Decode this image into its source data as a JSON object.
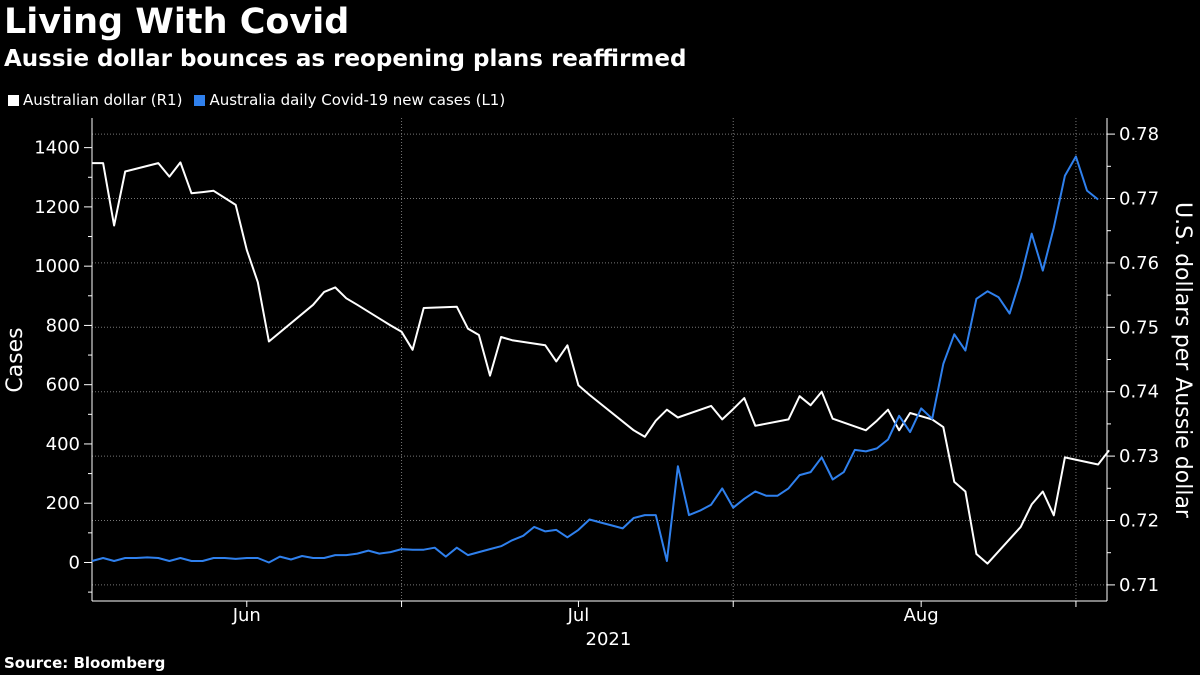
{
  "header": {
    "title": "Living With Covid",
    "subtitle": "Aussie dollar bounces as reopening plans reaffirmed"
  },
  "legend": [
    {
      "label": "Australian dollar (R1)",
      "color": "#ffffff"
    },
    {
      "label": "Australia daily Covid-19 new cases (L1)",
      "color": "#2f80ed"
    }
  ],
  "footer": {
    "source": "Source: Bloomberg"
  },
  "chart_data": {
    "type": "line",
    "title": "Living With Covid",
    "subtitle": "Aussie dollar bounces as reopening plans reaffirmed",
    "x_ticks": [
      {
        "date": "2021-06-01",
        "label": "Jun"
      },
      {
        "date": "2021-07-01",
        "label": "Jul"
      },
      {
        "date": "2021-08-01",
        "label": "Aug"
      }
    ],
    "x_minor_grid": [
      "2021-06-15",
      "2021-07-15",
      "2021-08-15"
    ],
    "x_year_label": "2021",
    "xlim": [
      "2021-05-18",
      "2021-08-16"
    ],
    "left_axis": {
      "label": "Cases",
      "ylim": [
        -130,
        1500
      ],
      "ticks": [
        0,
        200,
        400,
        600,
        800,
        1000,
        1200,
        1400
      ]
    },
    "right_axis": {
      "label": "U.S. dollars per Aussie dollar",
      "ylim": [
        0.7075,
        0.7825
      ],
      "ticks": [
        "0.71",
        "0.72",
        "0.73",
        "0.74",
        "0.75",
        "0.76",
        "0.77",
        "0.78"
      ]
    },
    "grid": true,
    "series": [
      {
        "name": "Australian dollar (R1)",
        "axis": "right",
        "color": "#ffffff",
        "points": [
          [
            "2021-05-18",
            0.7755
          ],
          [
            "2021-05-19",
            0.7755
          ],
          [
            "2021-05-20",
            0.7658
          ],
          [
            "2021-05-21",
            0.7742
          ],
          [
            "2021-05-24",
            0.7755
          ],
          [
            "2021-05-25",
            0.7734
          ],
          [
            "2021-05-26",
            0.7756
          ],
          [
            "2021-05-27",
            0.7708
          ],
          [
            "2021-05-28",
            0.771
          ],
          [
            "2021-05-29",
            0.7712
          ],
          [
            "2021-05-31",
            0.769
          ],
          [
            "2021-06-01",
            0.762
          ],
          [
            "2021-06-02",
            0.757
          ],
          [
            "2021-06-03",
            0.7478
          ],
          [
            "2021-06-07",
            0.7535
          ],
          [
            "2021-06-08",
            0.7555
          ],
          [
            "2021-06-09",
            0.7562
          ],
          [
            "2021-06-10",
            0.7545
          ],
          [
            "2021-06-11",
            0.7535
          ],
          [
            "2021-06-14",
            0.7503
          ],
          [
            "2021-06-15",
            0.7493
          ],
          [
            "2021-06-16",
            0.7465
          ],
          [
            "2021-06-17",
            0.753
          ],
          [
            "2021-06-20",
            0.7532
          ],
          [
            "2021-06-21",
            0.7498
          ],
          [
            "2021-06-22",
            0.7488
          ],
          [
            "2021-06-23",
            0.7425
          ],
          [
            "2021-06-24",
            0.7485
          ],
          [
            "2021-06-25",
            0.748
          ],
          [
            "2021-06-28",
            0.7472
          ],
          [
            "2021-06-29",
            0.7447
          ],
          [
            "2021-06-30",
            0.7472
          ],
          [
            "2021-07-01",
            0.741
          ],
          [
            "2021-07-02",
            0.7395
          ],
          [
            "2021-07-06",
            0.734
          ],
          [
            "2021-07-07",
            0.733
          ],
          [
            "2021-07-08",
            0.7355
          ],
          [
            "2021-07-09",
            0.7372
          ],
          [
            "2021-07-10",
            0.736
          ],
          [
            "2021-07-13",
            0.7378
          ],
          [
            "2021-07-14",
            0.7357
          ],
          [
            "2021-07-15",
            0.7373
          ],
          [
            "2021-07-16",
            0.739
          ],
          [
            "2021-07-17",
            0.7347
          ],
          [
            "2021-07-20",
            0.7357
          ],
          [
            "2021-07-21",
            0.7393
          ],
          [
            "2021-07-22",
            0.7379
          ],
          [
            "2021-07-23",
            0.74
          ],
          [
            "2021-07-24",
            0.7358
          ],
          [
            "2021-07-27",
            0.734
          ],
          [
            "2021-07-28",
            0.7355
          ],
          [
            "2021-07-29",
            0.7372
          ],
          [
            "2021-07-30",
            0.734
          ],
          [
            "2021-07-31",
            0.7367
          ],
          [
            "2021-08-02",
            0.7357
          ],
          [
            "2021-08-03",
            0.7345
          ],
          [
            "2021-08-04",
            0.726
          ],
          [
            "2021-08-05",
            0.7245
          ],
          [
            "2021-08-06",
            0.7148
          ],
          [
            "2021-08-07",
            0.7133
          ],
          [
            "2021-08-10",
            0.719
          ],
          [
            "2021-08-11",
            0.7225
          ],
          [
            "2021-08-12",
            0.7245
          ],
          [
            "2021-08-13",
            0.7208
          ],
          [
            "2021-08-14",
            0.7298
          ],
          [
            "2021-08-17",
            0.7287
          ],
          [
            "2021-08-18",
            0.7309
          ]
        ]
      },
      {
        "name": "Australia daily Covid-19 new cases (L1)",
        "axis": "left",
        "color": "#2f80ed",
        "points": [
          [
            "2021-05-18",
            5
          ],
          [
            "2021-05-19",
            15
          ],
          [
            "2021-05-20",
            5
          ],
          [
            "2021-05-21",
            15
          ],
          [
            "2021-05-22",
            15
          ],
          [
            "2021-05-23",
            17
          ],
          [
            "2021-05-24",
            15
          ],
          [
            "2021-05-25",
            5
          ],
          [
            "2021-05-26",
            15
          ],
          [
            "2021-05-27",
            5
          ],
          [
            "2021-05-28",
            5
          ],
          [
            "2021-05-29",
            15
          ],
          [
            "2021-05-30",
            15
          ],
          [
            "2021-05-31",
            12
          ],
          [
            "2021-06-01",
            15
          ],
          [
            "2021-06-02",
            15
          ],
          [
            "2021-06-03",
            0
          ],
          [
            "2021-06-04",
            20
          ],
          [
            "2021-06-05",
            10
          ],
          [
            "2021-06-06",
            22
          ],
          [
            "2021-06-07",
            15
          ],
          [
            "2021-06-08",
            15
          ],
          [
            "2021-06-09",
            25
          ],
          [
            "2021-06-10",
            25
          ],
          [
            "2021-06-11",
            30
          ],
          [
            "2021-06-12",
            40
          ],
          [
            "2021-06-13",
            30
          ],
          [
            "2021-06-14",
            35
          ],
          [
            "2021-06-15",
            45
          ],
          [
            "2021-06-16",
            43
          ],
          [
            "2021-06-17",
            43
          ],
          [
            "2021-06-18",
            50
          ],
          [
            "2021-06-19",
            20
          ],
          [
            "2021-06-20",
            50
          ],
          [
            "2021-06-21",
            25
          ],
          [
            "2021-06-22",
            35
          ],
          [
            "2021-06-23",
            45
          ],
          [
            "2021-06-24",
            55
          ],
          [
            "2021-06-25",
            75
          ],
          [
            "2021-06-26",
            90
          ],
          [
            "2021-06-27",
            120
          ],
          [
            "2021-06-28",
            105
          ],
          [
            "2021-06-29",
            110
          ],
          [
            "2021-06-30",
            85
          ],
          [
            "2021-07-01",
            110
          ],
          [
            "2021-07-02",
            145
          ],
          [
            "2021-07-03",
            135
          ],
          [
            "2021-07-04",
            125
          ],
          [
            "2021-07-05",
            115
          ],
          [
            "2021-07-06",
            150
          ],
          [
            "2021-07-07",
            160
          ],
          [
            "2021-07-08",
            160
          ],
          [
            "2021-07-09",
            5
          ],
          [
            "2021-07-10",
            325
          ],
          [
            "2021-07-11",
            160
          ],
          [
            "2021-07-12",
            175
          ],
          [
            "2021-07-13",
            195
          ],
          [
            "2021-07-14",
            250
          ],
          [
            "2021-07-15",
            185
          ],
          [
            "2021-07-16",
            215
          ],
          [
            "2021-07-17",
            240
          ],
          [
            "2021-07-18",
            225
          ],
          [
            "2021-07-19",
            225
          ],
          [
            "2021-07-20",
            250
          ],
          [
            "2021-07-21",
            295
          ],
          [
            "2021-07-22",
            305
          ],
          [
            "2021-07-23",
            355
          ],
          [
            "2021-07-24",
            280
          ],
          [
            "2021-07-25",
            305
          ],
          [
            "2021-07-26",
            380
          ],
          [
            "2021-07-27",
            375
          ],
          [
            "2021-07-28",
            385
          ],
          [
            "2021-07-29",
            415
          ],
          [
            "2021-07-30",
            495
          ],
          [
            "2021-07-31",
            440
          ],
          [
            "2021-08-01",
            520
          ],
          [
            "2021-08-02",
            485
          ],
          [
            "2021-08-03",
            670
          ],
          [
            "2021-08-04",
            770
          ],
          [
            "2021-08-05",
            715
          ],
          [
            "2021-08-06",
            890
          ],
          [
            "2021-08-07",
            915
          ],
          [
            "2021-08-08",
            895
          ],
          [
            "2021-08-09",
            840
          ],
          [
            "2021-08-10",
            960
          ],
          [
            "2021-08-11",
            1110
          ],
          [
            "2021-08-12",
            985
          ],
          [
            "2021-08-13",
            1130
          ],
          [
            "2021-08-14",
            1305
          ],
          [
            "2021-08-15",
            1370
          ],
          [
            "2021-08-16",
            1255
          ],
          [
            "2021-08-17",
            1225
          ]
        ]
      }
    ]
  }
}
